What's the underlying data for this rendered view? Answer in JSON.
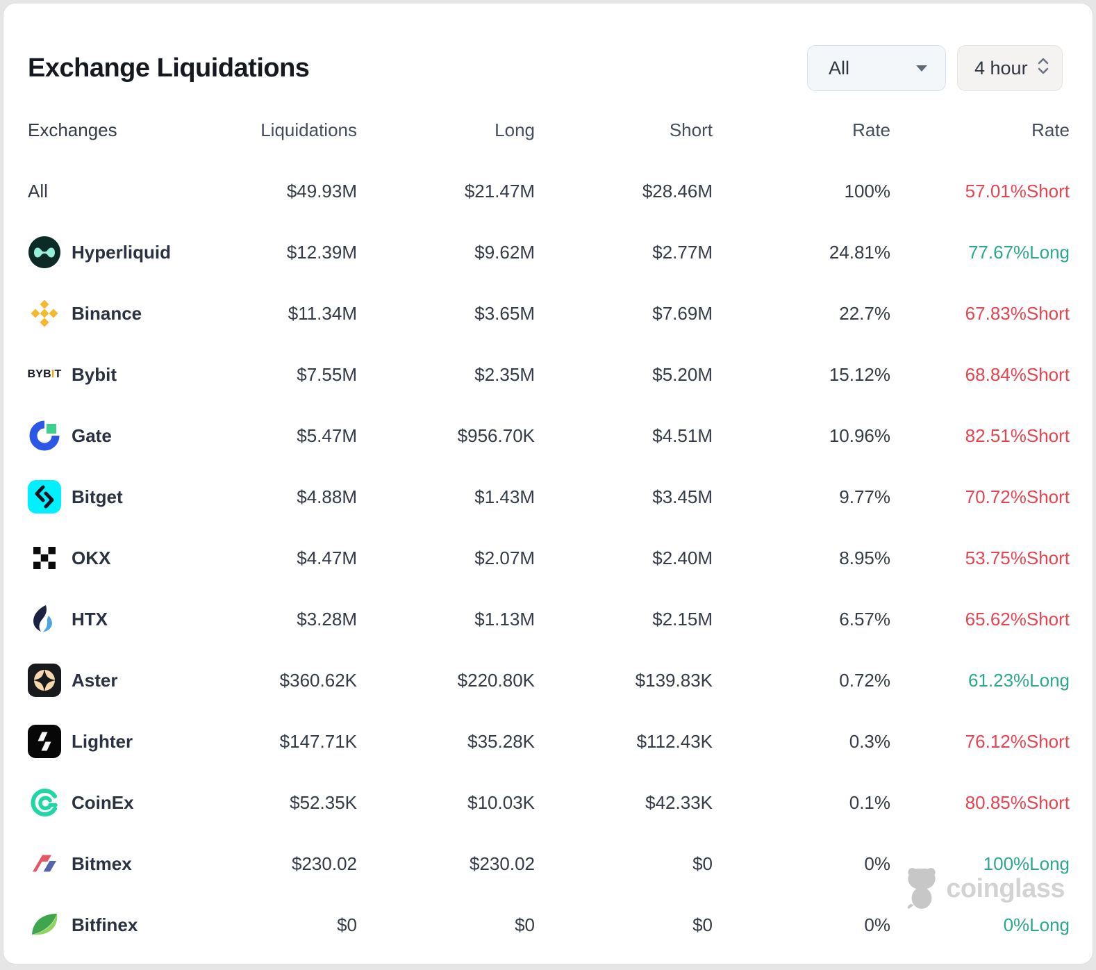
{
  "title": "Exchange Liquidations",
  "controls": {
    "exchange_filter": {
      "value": "All"
    },
    "timeframe": {
      "value": "4 hour"
    }
  },
  "table": {
    "columns": [
      "Exchanges",
      "Liquidations",
      "Long",
      "Short",
      "Rate",
      "Rate"
    ],
    "rows": [
      {
        "name": "All",
        "icon": null,
        "liquidations": "$49.93M",
        "long": "$21.47M",
        "short": "$28.46M",
        "rate": "100%",
        "rate2": "57.01%Short",
        "side": "short"
      },
      {
        "name": "Hyperliquid",
        "icon": "hyperliquid",
        "liquidations": "$12.39M",
        "long": "$9.62M",
        "short": "$2.77M",
        "rate": "24.81%",
        "rate2": "77.67%Long",
        "side": "long"
      },
      {
        "name": "Binance",
        "icon": "binance",
        "liquidations": "$11.34M",
        "long": "$3.65M",
        "short": "$7.69M",
        "rate": "22.7%",
        "rate2": "67.83%Short",
        "side": "short"
      },
      {
        "name": "Bybit",
        "icon": "bybit",
        "liquidations": "$7.55M",
        "long": "$2.35M",
        "short": "$5.20M",
        "rate": "15.12%",
        "rate2": "68.84%Short",
        "side": "short"
      },
      {
        "name": "Gate",
        "icon": "gate",
        "liquidations": "$5.47M",
        "long": "$956.70K",
        "short": "$4.51M",
        "rate": "10.96%",
        "rate2": "82.51%Short",
        "side": "short"
      },
      {
        "name": "Bitget",
        "icon": "bitget",
        "liquidations": "$4.88M",
        "long": "$1.43M",
        "short": "$3.45M",
        "rate": "9.77%",
        "rate2": "70.72%Short",
        "side": "short"
      },
      {
        "name": "OKX",
        "icon": "okx",
        "liquidations": "$4.47M",
        "long": "$2.07M",
        "short": "$2.40M",
        "rate": "8.95%",
        "rate2": "53.75%Short",
        "side": "short"
      },
      {
        "name": "HTX",
        "icon": "htx",
        "liquidations": "$3.28M",
        "long": "$1.13M",
        "short": "$2.15M",
        "rate": "6.57%",
        "rate2": "65.62%Short",
        "side": "short"
      },
      {
        "name": "Aster",
        "icon": "aster",
        "liquidations": "$360.62K",
        "long": "$220.80K",
        "short": "$139.83K",
        "rate": "0.72%",
        "rate2": "61.23%Long",
        "side": "long"
      },
      {
        "name": "Lighter",
        "icon": "lighter",
        "liquidations": "$147.71K",
        "long": "$35.28K",
        "short": "$112.43K",
        "rate": "0.3%",
        "rate2": "76.12%Short",
        "side": "short"
      },
      {
        "name": "CoinEx",
        "icon": "coinex",
        "liquidations": "$52.35K",
        "long": "$10.03K",
        "short": "$42.33K",
        "rate": "0.1%",
        "rate2": "80.85%Short",
        "side": "short"
      },
      {
        "name": "Bitmex",
        "icon": "bitmex",
        "liquidations": "$230.02",
        "long": "$230.02",
        "short": "$0",
        "rate": "0%",
        "rate2": "100%Long",
        "side": "long"
      },
      {
        "name": "Bitfinex",
        "icon": "bitfinex",
        "liquidations": "$0",
        "long": "$0",
        "short": "$0",
        "rate": "0%",
        "rate2": "0%Long",
        "side": "long"
      }
    ]
  },
  "watermark": {
    "text": "coinglass"
  },
  "colors": {
    "short_red": "#e5454f",
    "long_green": "#2ba88d"
  }
}
